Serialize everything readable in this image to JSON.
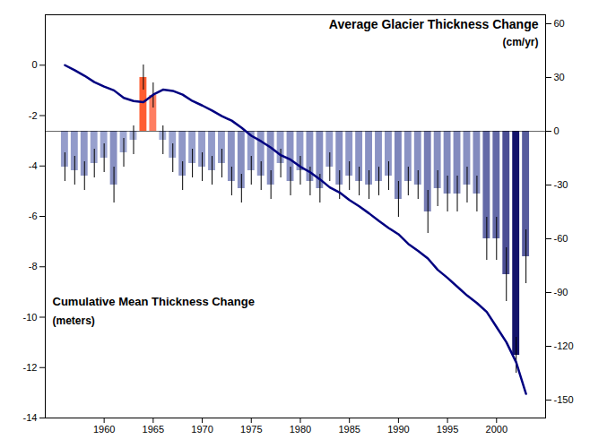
{
  "chart_data": {
    "type": "bar",
    "title": "Average Glacier Thickness Change",
    "subtitle": "(cm/yr)",
    "annotations": [
      "Cumulative Mean Thickness Change",
      "(meters)"
    ],
    "x": [
      1956,
      1957,
      1958,
      1959,
      1960,
      1961,
      1962,
      1963,
      1964,
      1965,
      1966,
      1967,
      1968,
      1969,
      1970,
      1971,
      1972,
      1973,
      1974,
      1975,
      1976,
      1977,
      1978,
      1979,
      1980,
      1981,
      1982,
      1983,
      1984,
      1985,
      1986,
      1987,
      1988,
      1989,
      1990,
      1991,
      1992,
      1993,
      1994,
      1995,
      1996,
      1997,
      1998,
      1999,
      2000,
      2001,
      2002,
      2003
    ],
    "xlim": [
      1954,
      2005
    ],
    "xticks": [
      1960,
      1965,
      1970,
      1975,
      1980,
      1985,
      1990,
      1995,
      2000
    ],
    "ylim": [
      -14,
      2
    ],
    "yticks": [
      0,
      -2,
      -4,
      -6,
      -8,
      -10,
      -12,
      -14
    ],
    "y2lim": [
      -160,
      65
    ],
    "y2ticks": [
      60,
      30,
      0,
      -30,
      -60,
      -90,
      -120,
      -150
    ],
    "series": [
      {
        "type": "bar",
        "axis": "y2",
        "values": [
          -20,
          -22,
          -25,
          -18,
          -15,
          -30,
          -12,
          -5,
          30,
          20,
          -5,
          -15,
          -25,
          -18,
          -20,
          -22,
          -18,
          -28,
          -32,
          -22,
          -25,
          -30,
          -18,
          -28,
          -22,
          -28,
          -32,
          -20,
          -30,
          -25,
          -28,
          -30,
          -28,
          -25,
          -38,
          -28,
          -30,
          -45,
          -32,
          -35,
          -35,
          -30,
          -35,
          -60,
          -60,
          -80,
          -125,
          -70
        ],
        "errors": [
          8,
          8,
          8,
          8,
          8,
          10,
          8,
          8,
          7,
          7,
          8,
          8,
          8,
          8,
          8,
          8,
          8,
          8,
          8,
          8,
          8,
          8,
          8,
          8,
          8,
          8,
          8,
          8,
          8,
          8,
          8,
          8,
          8,
          8,
          10,
          8,
          8,
          12,
          10,
          10,
          10,
          10,
          10,
          12,
          12,
          15,
          10,
          15
        ],
        "colors": [
          "#959dcb",
          "#929bca",
          "#8f97c7",
          "#97a0cd",
          "#9ba4d0",
          "#8890c2",
          "#9fa8d3",
          "#a7b1d9",
          "#ff5d31",
          "#ff7e61",
          "#a7b1d9",
          "#9ba4d0",
          "#8f97c7",
          "#97a0cd",
          "#959dcb",
          "#929bca",
          "#97a0cd",
          "#8b93c4",
          "#868ec0",
          "#929bca",
          "#8f97c7",
          "#8890c2",
          "#97a0cd",
          "#8b93c4",
          "#929bca",
          "#8b93c4",
          "#868ec0",
          "#959dcb",
          "#8890c2",
          "#8f97c7",
          "#8b93c4",
          "#8890c2",
          "#8b93c4",
          "#8f97c7",
          "#7e86bb",
          "#8b93c4",
          "#8890c2",
          "#767cb4",
          "#868ec0",
          "#828abe",
          "#828abe",
          "#8890c2",
          "#828abe",
          "#6369a7",
          "#6369a7",
          "#4b4e94",
          "#13136b",
          "#575c9d"
        ]
      },
      {
        "type": "line",
        "color": "#000080",
        "values": [
          0.0,
          -0.2,
          -0.42,
          -0.67,
          -0.85,
          -1.0,
          -1.3,
          -1.42,
          -1.47,
          -1.17,
          -0.97,
          -1.02,
          -1.17,
          -1.42,
          -1.6,
          -1.8,
          -2.02,
          -2.2,
          -2.48,
          -2.8,
          -3.02,
          -3.27,
          -3.57,
          -3.75,
          -4.03,
          -4.25,
          -4.53,
          -4.85,
          -5.05,
          -5.35,
          -5.6,
          -5.88,
          -6.18,
          -6.46,
          -6.71,
          -7.09,
          -7.37,
          -7.67,
          -8.12,
          -8.44,
          -8.79,
          -9.14,
          -9.44,
          -9.79,
          -10.39,
          -10.99,
          -11.79,
          -13.04
        ]
      }
    ]
  }
}
